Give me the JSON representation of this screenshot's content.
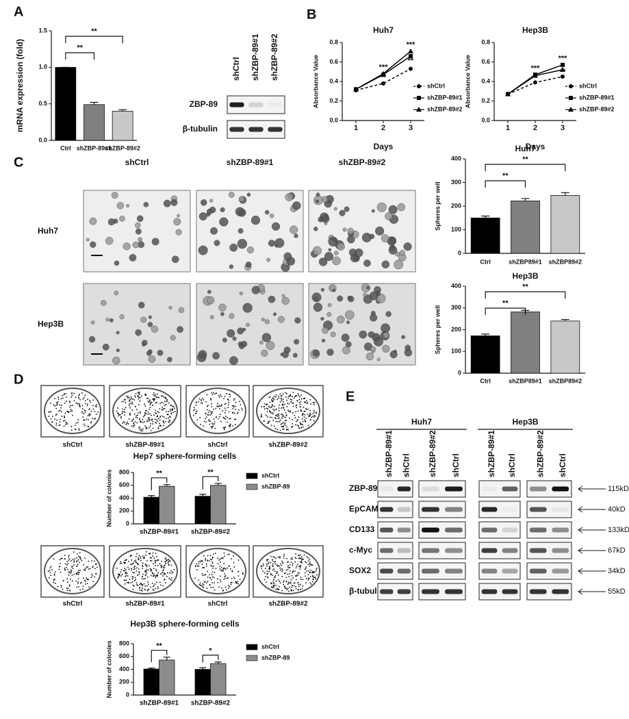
{
  "panel_labels": [
    "A",
    "B",
    "C",
    "D",
    "E"
  ],
  "chart_data": [
    {
      "type": "bar",
      "categories": [
        "Ctrl",
        "shZBP-89#1",
        "shZBP-89#2"
      ],
      "values": [
        1.0,
        0.49,
        0.4
      ],
      "errors": [
        0,
        0.03,
        0.02
      ],
      "colors": [
        "#000000",
        "#808080",
        "#c8c8c8"
      ],
      "ylabel": "mRNA expression (fold)",
      "ylim": [
        0,
        1.5
      ],
      "yticks": [
        {
          "value": 0,
          "label": "0.0"
        },
        0.5,
        {
          "value": 1,
          "label": "1.0"
        },
        1.5
      ],
      "annotations": [
        "**",
        "**"
      ]
    },
    {
      "type": "line",
      "title": "Huh7",
      "x": [
        1,
        2,
        3
      ],
      "xlim": [
        0.5,
        3.5
      ],
      "xticks": [
        1,
        2,
        3
      ],
      "xlabel": "Days",
      "ylabel": "Absorbance Value",
      "ylim": [
        0,
        0.8
      ],
      "yticks": [
        {
          "value": 0,
          "label": "0.0"
        },
        0.2,
        0.4,
        0.6,
        0.8
      ],
      "series": [
        {
          "name": "shCtrl",
          "color": "#000000",
          "marker": "circle",
          "dashed": true,
          "values": [
            0.31,
            0.38,
            0.53
          ]
        },
        {
          "name": "shZBP-89#1",
          "color": "#000000",
          "marker": "square",
          "dashed": false,
          "values": [
            0.32,
            0.47,
            0.66
          ]
        },
        {
          "name": "shZBP-89#2",
          "color": "#000000",
          "marker": "triangle",
          "dashed": false,
          "values": [
            0.32,
            0.48,
            0.71
          ]
        }
      ],
      "annotations": [
        "***",
        "**",
        "***",
        "**"
      ]
    },
    {
      "type": "line",
      "title": "Hep3B",
      "x": [
        1,
        2,
        3
      ],
      "xlim": [
        0.5,
        3.5
      ],
      "xticks": [
        1,
        2,
        3
      ],
      "xlabel": "Days",
      "ylabel": "Absorbance Value",
      "ylim": [
        0,
        0.8
      ],
      "yticks": [
        {
          "value": 0,
          "label": "0.0"
        },
        0.2,
        0.4,
        0.6,
        0.8
      ],
      "series": [
        {
          "name": "shCtrl",
          "color": "#000000",
          "marker": "circle",
          "dashed": true,
          "values": [
            0.27,
            0.39,
            0.45
          ]
        },
        {
          "name": "shZBP-89#1",
          "color": "#000000",
          "marker": "square",
          "dashed": false,
          "values": [
            0.27,
            0.47,
            0.57
          ]
        },
        {
          "name": "shZBP-89#2",
          "color": "#000000",
          "marker": "triangle",
          "dashed": false,
          "values": [
            0.27,
            0.46,
            0.52
          ]
        }
      ],
      "annotations": [
        "***",
        "***",
        "**"
      ]
    },
    {
      "type": "bar",
      "title": "Huh7",
      "categories": [
        "Ctrl",
        "shZBP89#1",
        "shZBP89#2"
      ],
      "values": [
        150,
        222,
        245
      ],
      "errors": [
        8,
        10,
        12
      ],
      "colors": [
        "#000000",
        "#808080",
        "#c8c8c8"
      ],
      "ylabel": "Spheres per well",
      "ylim": [
        0,
        400
      ],
      "yticks": [
        0,
        100,
        200,
        300,
        400
      ],
      "annotations": [
        "**",
        "**"
      ]
    },
    {
      "type": "bar",
      "title": "Hep3B",
      "categories": [
        "Ctrl",
        "shZBP89#1",
        "shZBP89#2"
      ],
      "values": [
        172,
        282,
        240
      ],
      "errors": [
        8,
        7,
        7
      ],
      "colors": [
        "#000000",
        "#808080",
        "#c8c8c8"
      ],
      "ylabel": "Spheres per well",
      "ylim": [
        0,
        400
      ],
      "yticks": [
        0,
        100,
        200,
        300,
        400
      ],
      "annotations": [
        "**",
        "**"
      ]
    },
    {
      "type": "grouped_bar",
      "title": "Hep7 sphere-forming cells",
      "categories": [
        "shZBP-89#1",
        "shZBP-89#2"
      ],
      "series": [
        {
          "name": "shCtrl",
          "color": "#000000",
          "values": [
            415,
            430
          ],
          "errors": [
            25,
            30
          ]
        },
        {
          "name": "shZBP-89",
          "color": "#8c8c8c",
          "values": [
            585,
            600
          ],
          "errors": [
            25,
            30
          ]
        }
      ],
      "ylabel": "Number of colonies",
      "ylim": [
        0,
        800
      ],
      "yticks": [
        0,
        200,
        400,
        600,
        800
      ],
      "annotations": [
        "**",
        "**"
      ]
    },
    {
      "type": "grouped_bar",
      "title": "Hep3B sphere-forming cells",
      "categories": [
        "shZBP-89#1",
        "shZBP-89#2"
      ],
      "series": [
        {
          "name": "shCtrl",
          "color": "#000000",
          "values": [
            405,
            400
          ],
          "errors": [
            15,
            25
          ]
        },
        {
          "name": "shZBP-89",
          "color": "#8c8c8c",
          "values": [
            545,
            490
          ],
          "errors": [
            45,
            25
          ]
        }
      ],
      "ylabel": "Number of colonies",
      "ylim": [
        0,
        800
      ],
      "yticks": [
        0,
        200,
        400,
        600,
        800
      ],
      "annotations": [
        "**",
        "*"
      ]
    }
  ],
  "blot_a": {
    "lanes": [
      "shCtrl",
      "shZBP-89#1",
      "shZBP-89#2"
    ],
    "rows": [
      "ZBP-89",
      "β-tubulin"
    ]
  },
  "images_c": {
    "columns": [
      "shCtrl",
      "shZBP-89#1",
      "shZBP-89#2"
    ],
    "rows": [
      "Huh7",
      "Hep3B"
    ]
  },
  "plates_d": {
    "row1": [
      "shCtrl",
      "shZBP-89#1",
      "shCtrl",
      "shZBP-89#2"
    ],
    "row2": [
      "shCtrl",
      "shZBP-89#1",
      "shCtrl",
      "shZBP-89#2"
    ]
  },
  "blot_e": {
    "groups": [
      "Huh7",
      "Hep3B"
    ],
    "lanes": [
      [
        "shZBP-89#1",
        "shCtrl",
        "shZBP-89#2",
        "shCtrl"
      ],
      [
        "shZBP-89#1",
        "shCtrl",
        "shZBP-89#2",
        "shCtrl"
      ]
    ],
    "rows": [
      "ZBP-89",
      "EpCAM",
      "CD133",
      "c-Myc",
      "SOX2",
      "β-tubulin"
    ],
    "sizes": [
      "115kD",
      "40kD",
      "133kD",
      "67kD",
      "34kD",
      "55kD"
    ]
  }
}
